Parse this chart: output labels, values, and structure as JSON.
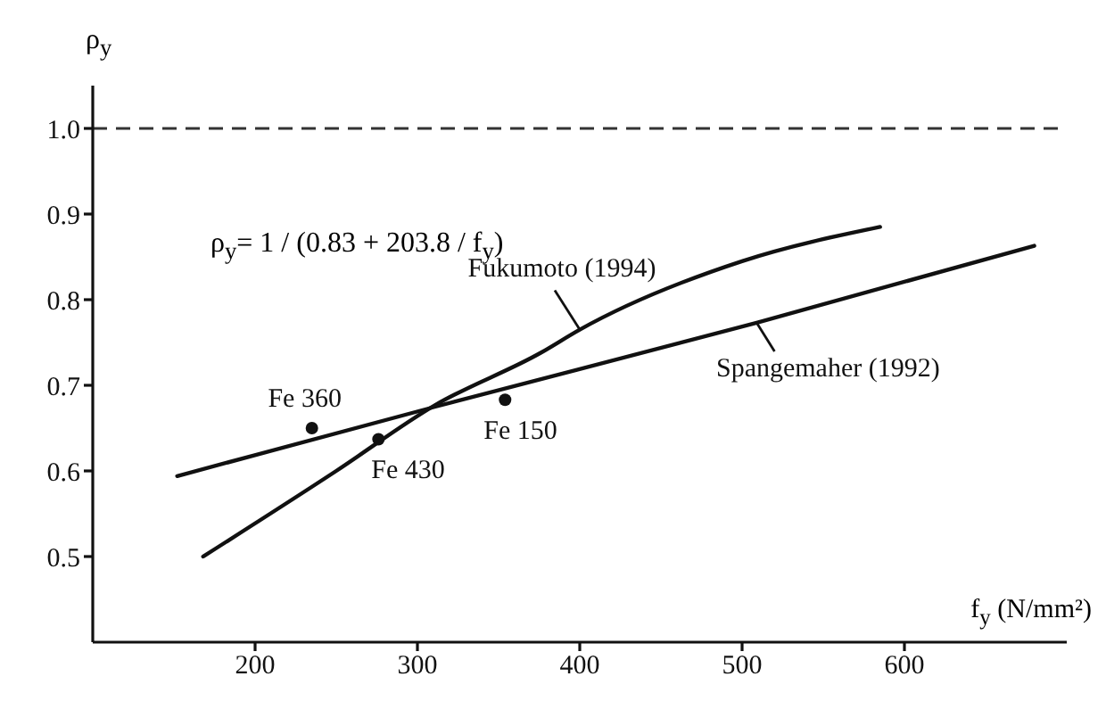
{
  "chart_data": {
    "type": "line",
    "xlabel": "f$_{y}$ (N/mm²)",
    "ylabel": "ρ$_{y}$",
    "xlim": [
      100,
      700
    ],
    "xticks": [
      200,
      300,
      400,
      500,
      600
    ],
    "ylim": [
      0.4,
      1.05
    ],
    "yticks": [
      0.5,
      0.6,
      0.7,
      0.8,
      0.9,
      {
        "value": 1.0,
        "label": "1.0"
      }
    ],
    "marker": "none",
    "line_style": "solid",
    "series": [
      {
        "name": "Fukumoto (1994)",
        "color": "#111111",
        "x": [
          168,
          250,
          311,
          376,
          400,
          500,
          585
        ],
        "values": [
          0.5,
          0.6,
          0.677,
          0.738,
          0.765,
          0.845,
          0.885
        ]
      },
      {
        "name": "Spangemaher (1992)",
        "color": "#111111",
        "x": [
          152,
          311,
          509,
          680
        ],
        "values": [
          0.594,
          0.675,
          0.773,
          0.863
        ]
      },
      {
        "type": "scatter",
        "marker": "circle",
        "color": "#111111",
        "x": [
          235,
          276,
          354
        ],
        "values": [
          0.65,
          0.637,
          0.683
        ]
      }
    ],
    "ref_lines": [
      {
        "axis": "y",
        "value": 1.0,
        "line_style": "dashed",
        "color": "#333333"
      }
    ],
    "annotations": [
      "ρ$_{y}$= 1 / (0.83 + 203.8 / f$_{y}$)",
      {
        "text": "Fe 360",
        "x": 235,
        "y": 0.65
      },
      {
        "text": "Fe 430",
        "x": 276,
        "y": 0.637
      },
      {
        "text": "Fe 150",
        "x": 354,
        "y": 0.683
      }
    ]
  }
}
